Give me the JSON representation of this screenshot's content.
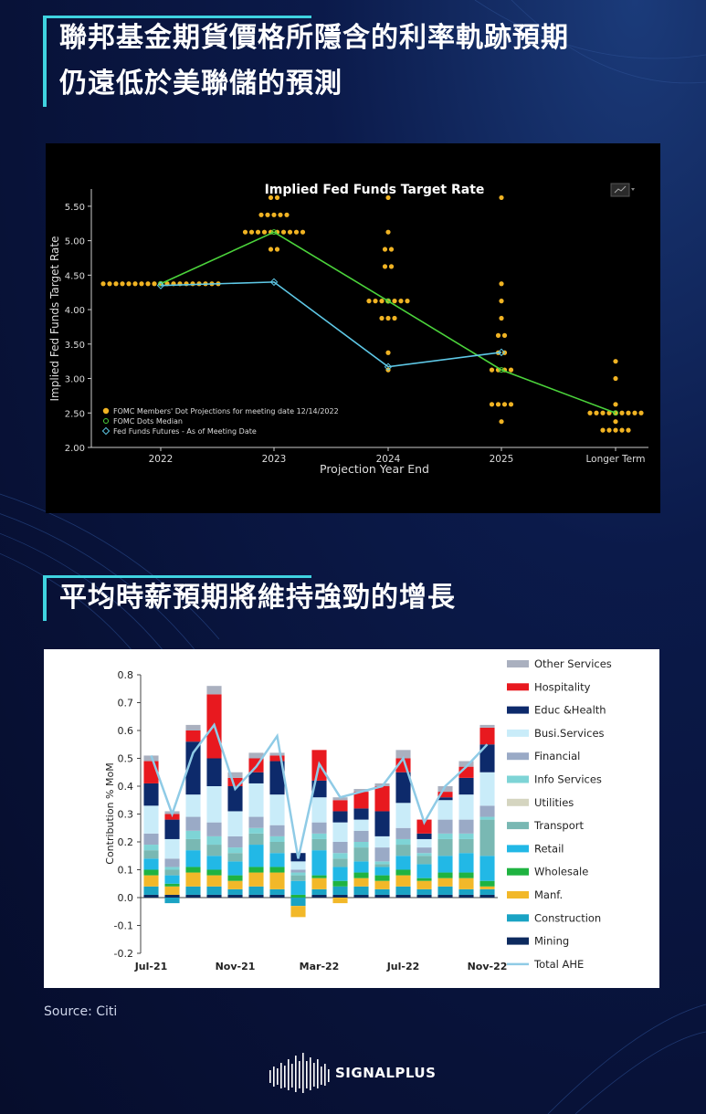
{
  "heading1": {
    "line1": "聯邦基金期貨價格所隱含的利率軌跡預期",
    "line2": "仍遠低於美聯儲的預測"
  },
  "heading2": {
    "text": "平均時薪預期將維持強勁的增長"
  },
  "source": "Source: Citi",
  "brand": {
    "name": "SIGNALPLUS"
  },
  "colors": {
    "accent": "#3fd3e0",
    "dots": "#f0b323",
    "median": "#4bd33b",
    "futures": "#5ec8e6"
  },
  "chart_data": [
    {
      "type": "scatter",
      "title": "Implied Fed Funds Target Rate",
      "xlabel": "Projection Year End",
      "ylabel": "Implied Fed Funds Target Rate",
      "categories": [
        "2022",
        "2023",
        "2024",
        "2025",
        "Longer Term"
      ],
      "ylim": [
        2.0,
        5.75
      ],
      "yticks": [
        "5.50",
        "5.00",
        "4.50",
        "4.00",
        "3.50",
        "3.00",
        "2.50",
        "2.00"
      ],
      "ytick_values": [
        5.5,
        5.0,
        4.5,
        4.0,
        3.5,
        3.0,
        2.5,
        2.0
      ],
      "legend": [
        "FOMC Members' Dot Projections for meeting date 12/14/2022",
        "FOMC Dots Median",
        "Fed Funds Futures - As of Meeting Date"
      ],
      "legend_position": "bottom-left",
      "dots": [
        [
          [
            4.375,
            19
          ]
        ],
        [
          [
            5.625,
            2
          ],
          [
            5.375,
            5
          ],
          [
            5.125,
            10
          ],
          [
            4.875,
            2
          ]
        ],
        [
          [
            5.625,
            1
          ],
          [
            5.125,
            1
          ],
          [
            4.875,
            2
          ],
          [
            4.625,
            2
          ],
          [
            4.125,
            7
          ],
          [
            3.875,
            3
          ],
          [
            3.375,
            1
          ],
          [
            3.125,
            1
          ]
        ],
        [
          [
            5.625,
            1
          ],
          [
            4.375,
            1
          ],
          [
            4.125,
            1
          ],
          [
            3.875,
            1
          ],
          [
            3.625,
            2
          ],
          [
            3.375,
            2
          ],
          [
            3.125,
            4
          ],
          [
            2.625,
            4
          ],
          [
            2.375,
            1
          ]
        ],
        [
          [
            3.25,
            1
          ],
          [
            3.0,
            1
          ],
          [
            2.625,
            1
          ],
          [
            2.5,
            9
          ],
          [
            2.375,
            1
          ],
          [
            2.25,
            5
          ]
        ]
      ],
      "series": [
        {
          "name": "FOMC Dots Median",
          "values": [
            4.375,
            5.125,
            4.125,
            3.125,
            2.5
          ]
        },
        {
          "name": "Fed Funds Futures - As of Meeting Date",
          "values": [
            4.35,
            4.4,
            3.17,
            3.38,
            null
          ]
        }
      ]
    },
    {
      "type": "bar",
      "stacked": true,
      "ylabel": "Contribution % MoM",
      "ylim": [
        -0.2,
        0.8
      ],
      "yticks": [
        "0.8",
        "0.7",
        "0.6",
        "0.5",
        "0.4",
        "0.3",
        "0.2",
        "0.1",
        "0.0",
        "-0.1",
        "-0.2"
      ],
      "ytick_values": [
        0.8,
        0.7,
        0.6,
        0.5,
        0.4,
        0.3,
        0.2,
        0.1,
        0.0,
        -0.1,
        -0.2
      ],
      "categories": [
        "Jul-21",
        "Aug-21",
        "Sep-21",
        "Oct-21",
        "Nov-21",
        "Dec-21",
        "Jan-22",
        "Feb-22",
        "Mar-22",
        "Apr-22",
        "May-22",
        "Jun-22",
        "Jul-22",
        "Aug-22",
        "Sep-22",
        "Oct-22",
        "Nov-22"
      ],
      "xtick_labels": [
        {
          "index": 0,
          "label": "Jul-21"
        },
        {
          "index": 4,
          "label": "Nov-21"
        },
        {
          "index": 8,
          "label": "Mar-22"
        },
        {
          "index": 12,
          "label": "Jul-22"
        },
        {
          "index": 16,
          "label": "Nov-22"
        }
      ],
      "legend_position": "right",
      "series": [
        {
          "name": "Mining",
          "color": "#0d2a5e",
          "values": [
            0.01,
            0.01,
            0.01,
            0.01,
            0.01,
            0.01,
            0.01,
            0.0,
            0.01,
            0.01,
            0.01,
            0.01,
            0.01,
            0.01,
            0.01,
            0.01,
            0.01
          ]
        },
        {
          "name": "Construction",
          "color": "#1aa3c4",
          "values": [
            0.03,
            -0.02,
            0.03,
            0.03,
            0.02,
            0.03,
            0.02,
            -0.03,
            0.02,
            0.03,
            0.03,
            0.02,
            0.03,
            0.02,
            0.03,
            0.02,
            0.02
          ]
        },
        {
          "name": "Manf.",
          "color": "#f2b829",
          "values": [
            0.04,
            0.03,
            0.05,
            0.04,
            0.03,
            0.05,
            0.06,
            -0.04,
            0.04,
            -0.02,
            0.03,
            0.03,
            0.04,
            0.03,
            0.03,
            0.04,
            0.01
          ]
        },
        {
          "name": "Wholesale",
          "color": "#1fb341",
          "values": [
            0.02,
            0.01,
            0.02,
            0.02,
            0.02,
            0.02,
            0.02,
            0.01,
            0.01,
            0.02,
            0.02,
            0.02,
            0.02,
            0.01,
            0.02,
            0.02,
            0.02
          ]
        },
        {
          "name": "Retail",
          "color": "#22b8e6",
          "values": [
            0.04,
            0.03,
            0.06,
            0.05,
            0.05,
            0.08,
            0.05,
            0.05,
            0.09,
            0.05,
            0.04,
            0.03,
            0.05,
            0.05,
            0.06,
            0.07,
            0.09
          ]
        },
        {
          "name": "Transport",
          "color": "#79b8b3",
          "values": [
            0.03,
            0.02,
            0.04,
            0.04,
            0.03,
            0.04,
            0.04,
            0.02,
            0.04,
            0.03,
            0.05,
            0.01,
            0.04,
            0.03,
            0.06,
            0.05,
            0.13
          ]
        },
        {
          "name": "Utilities",
          "color": "#d5d5c0",
          "values": [
            0.0,
            0.0,
            0.0,
            0.0,
            0.0,
            0.0,
            0.0,
            0.0,
            0.0,
            0.0,
            0.0,
            0.0,
            0.0,
            0.0,
            0.0,
            0.0,
            0.0
          ]
        },
        {
          "name": "Info Services",
          "color": "#7ed4d6",
          "values": [
            0.02,
            0.01,
            0.03,
            0.03,
            0.02,
            0.02,
            0.02,
            0.01,
            0.02,
            0.02,
            0.02,
            0.01,
            0.02,
            0.01,
            0.02,
            0.02,
            0.01
          ]
        },
        {
          "name": "Financial",
          "color": "#9aaac6",
          "values": [
            0.04,
            0.03,
            0.05,
            0.05,
            0.04,
            0.04,
            0.04,
            0.01,
            0.04,
            0.04,
            0.04,
            0.05,
            0.04,
            0.02,
            0.05,
            0.05,
            0.04
          ]
        },
        {
          "name": "Busi.Services",
          "color": "#c9ecf9",
          "values": [
            0.1,
            0.07,
            0.08,
            0.13,
            0.09,
            0.12,
            0.11,
            0.03,
            0.09,
            0.07,
            0.04,
            0.04,
            0.09,
            0.03,
            0.07,
            0.09,
            0.12
          ]
        },
        {
          "name": "Educ &Health",
          "color": "#0d2a6b",
          "values": [
            0.08,
            0.07,
            0.19,
            0.1,
            0.09,
            0.04,
            0.12,
            0.03,
            0.06,
            0.04,
            0.04,
            0.09,
            0.11,
            0.02,
            0.01,
            0.06,
            0.1
          ]
        },
        {
          "name": "Hospitality",
          "color": "#e8191f",
          "values": [
            0.08,
            0.02,
            0.04,
            0.23,
            0.03,
            0.05,
            0.02,
            0.0,
            0.11,
            0.04,
            0.06,
            0.09,
            0.05,
            0.05,
            0.02,
            0.04,
            0.06
          ]
        },
        {
          "name": "Other Services",
          "color": "#aab0bf",
          "values": [
            0.02,
            0.01,
            0.02,
            0.03,
            0.02,
            0.02,
            0.01,
            0.0,
            0.0,
            0.01,
            0.01,
            0.01,
            0.03,
            0.0,
            0.02,
            0.02,
            0.01
          ]
        }
      ],
      "line": {
        "name": "Total AHE",
        "color": "#8fcbe6",
        "values": [
          0.51,
          0.3,
          0.52,
          0.62,
          0.39,
          0.47,
          0.58,
          0.14,
          0.48,
          0.36,
          0.38,
          0.4,
          0.5,
          0.27,
          0.4,
          0.47,
          0.55
        ]
      },
      "legend_order": [
        "Other Services",
        "Hospitality",
        "Educ &Health",
        "Busi.Services",
        "Financial",
        "Info Services",
        "Utilities",
        "Transport",
        "Retail",
        "Wholesale",
        "Manf.",
        "Construction",
        "Mining",
        "Total AHE"
      ]
    }
  ]
}
